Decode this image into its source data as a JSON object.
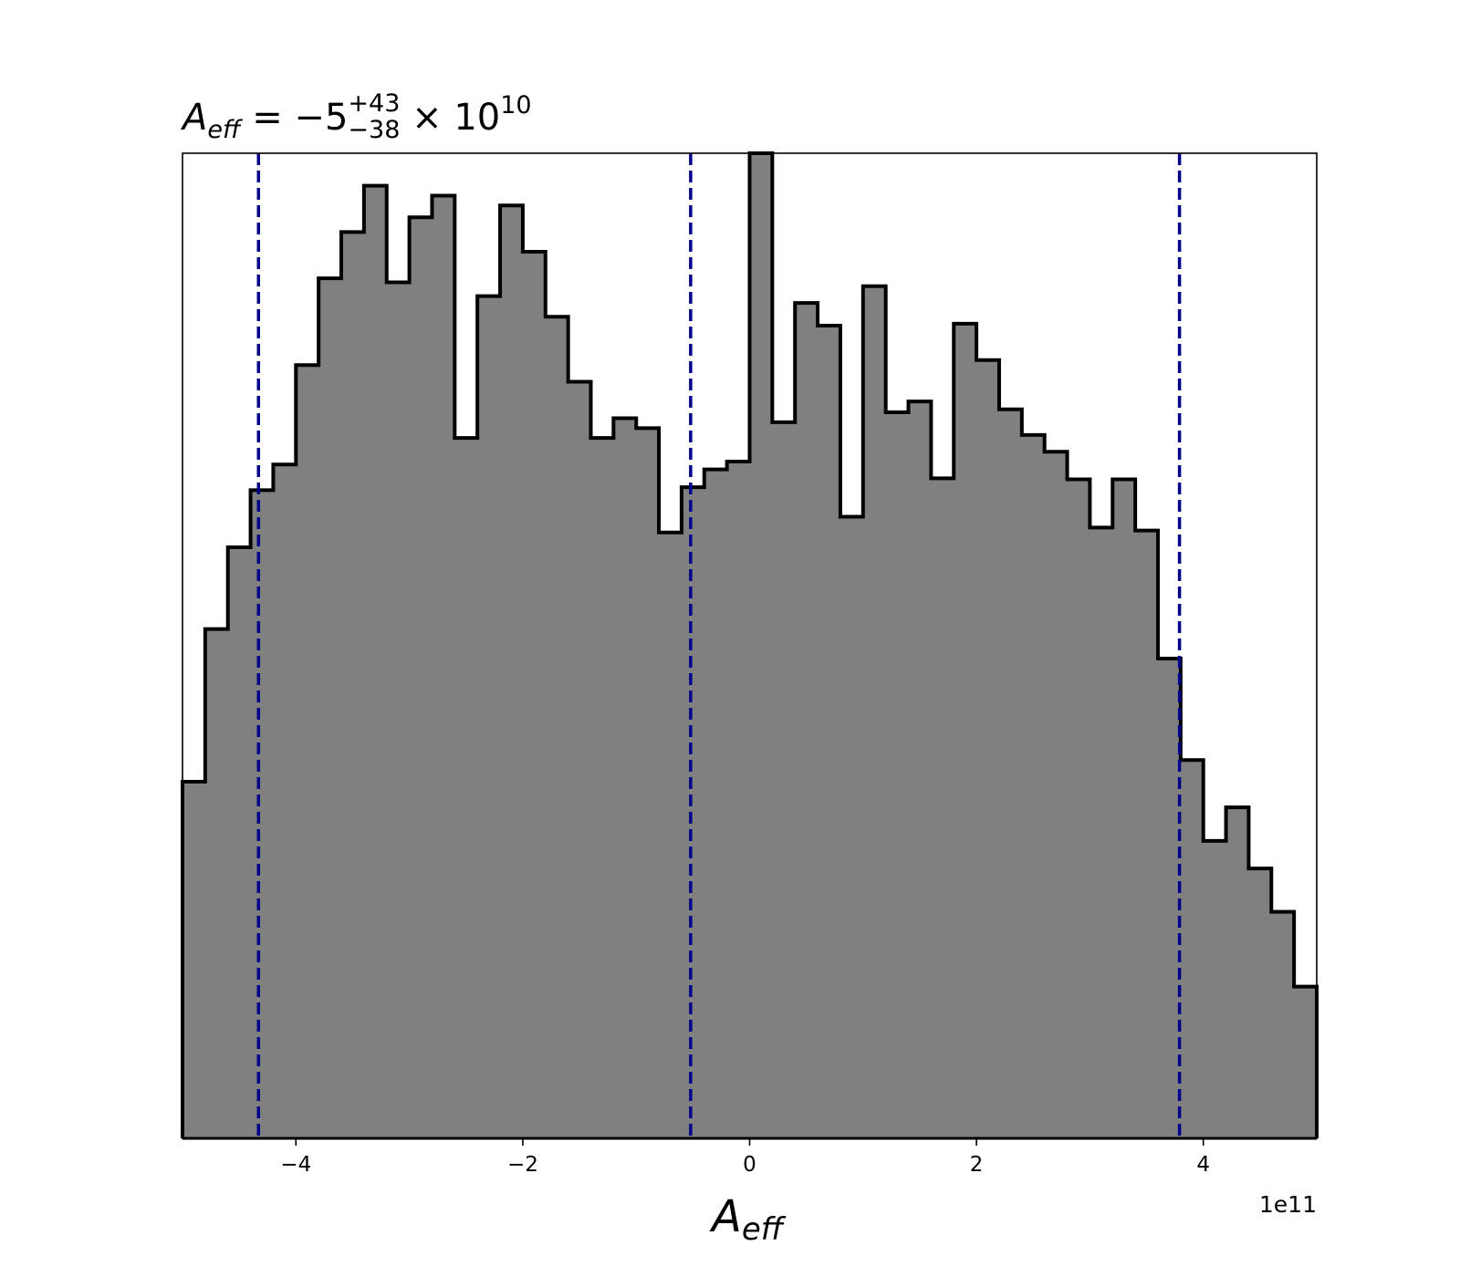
{
  "chart_data": {
    "type": "histogram",
    "title": {
      "var_base": "A",
      "var_sub": "eff",
      "prefix": " = −5",
      "sup": "+43",
      "sub": "−38",
      "suffix": " × 10",
      "exp": "10"
    },
    "xlabel": {
      "base": "A",
      "sub": "eff"
    },
    "x_offset_label": "1e11",
    "xlim": [
      -5.0,
      5.0
    ],
    "ylim": [
      0,
      1.0
    ],
    "x_ticks": [
      -4,
      -2,
      0,
      2,
      4
    ],
    "x_tick_labels": [
      "−4",
      "−2",
      "0",
      "2",
      "4"
    ],
    "bin_edges": [
      -5.0,
      -4.8,
      -4.6,
      -4.4,
      -4.2,
      -4.0,
      -3.8,
      -3.6,
      -3.4,
      -3.2,
      -3.0,
      -2.8,
      -2.6,
      -2.4,
      -2.2,
      -2.0,
      -1.8,
      -1.6,
      -1.4,
      -1.2,
      -1.0,
      -0.8,
      -0.6,
      -0.4,
      -0.2,
      0.0,
      0.2,
      0.4,
      0.6,
      0.8,
      1.0,
      1.2,
      1.4,
      1.6,
      1.8,
      2.0,
      2.2,
      2.4,
      2.6,
      2.8,
      3.0,
      3.2,
      3.4,
      3.6,
      3.8,
      4.0,
      4.2,
      4.4,
      4.6,
      4.8,
      5.0
    ],
    "counts": [
      0.362,
      0.517,
      0.6,
      0.658,
      0.684,
      0.785,
      0.873,
      0.92,
      0.967,
      0.869,
      0.935,
      0.957,
      0.711,
      0.855,
      0.947,
      0.9,
      0.834,
      0.768,
      0.711,
      0.731,
      0.721,
      0.615,
      0.661,
      0.679,
      0.687,
      1.0,
      0.727,
      0.848,
      0.825,
      0.631,
      0.865,
      0.737,
      0.748,
      0.67,
      0.827,
      0.79,
      0.74,
      0.714,
      0.697,
      0.669,
      0.62,
      0.669,
      0.617,
      0.487,
      0.384,
      0.302,
      0.336,
      0.274,
      0.23,
      0.154
    ],
    "quantile_lines": [
      -4.33,
      -0.52,
      3.79
    ],
    "colors": {
      "fill": "#808080",
      "edge": "#000000",
      "quantile": "#00008b"
    }
  }
}
